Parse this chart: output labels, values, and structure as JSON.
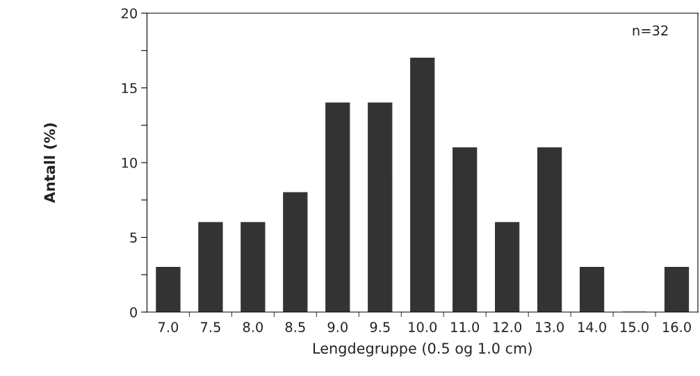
{
  "chart_data": {
    "type": "bar",
    "categories": [
      "7.0",
      "7.5",
      "8.0",
      "8.5",
      "9.0",
      "9.5",
      "10.0",
      "11.0",
      "12.0",
      "13.0",
      "14.0",
      "15.0",
      "16.0"
    ],
    "values": [
      3,
      6,
      6,
      8,
      14,
      14,
      17,
      11,
      6,
      11,
      3,
      0,
      3
    ],
    "color": "#333333",
    "xlabel": "Lengdegruppe (0.5 og 1.0 cm)",
    "ylabel": "Antall (%)",
    "ylim": [
      0,
      20
    ],
    "yticks": [
      0,
      {
        "value": 2.5,
        "label": null
      },
      5,
      {
        "value": 7.5,
        "label": null
      },
      10,
      {
        "value": 12.5,
        "label": null
      },
      15,
      {
        "value": 17.5,
        "label": null
      },
      20
    ],
    "annotations": [
      "n=32"
    ],
    "grid": false,
    "legend": false
  }
}
